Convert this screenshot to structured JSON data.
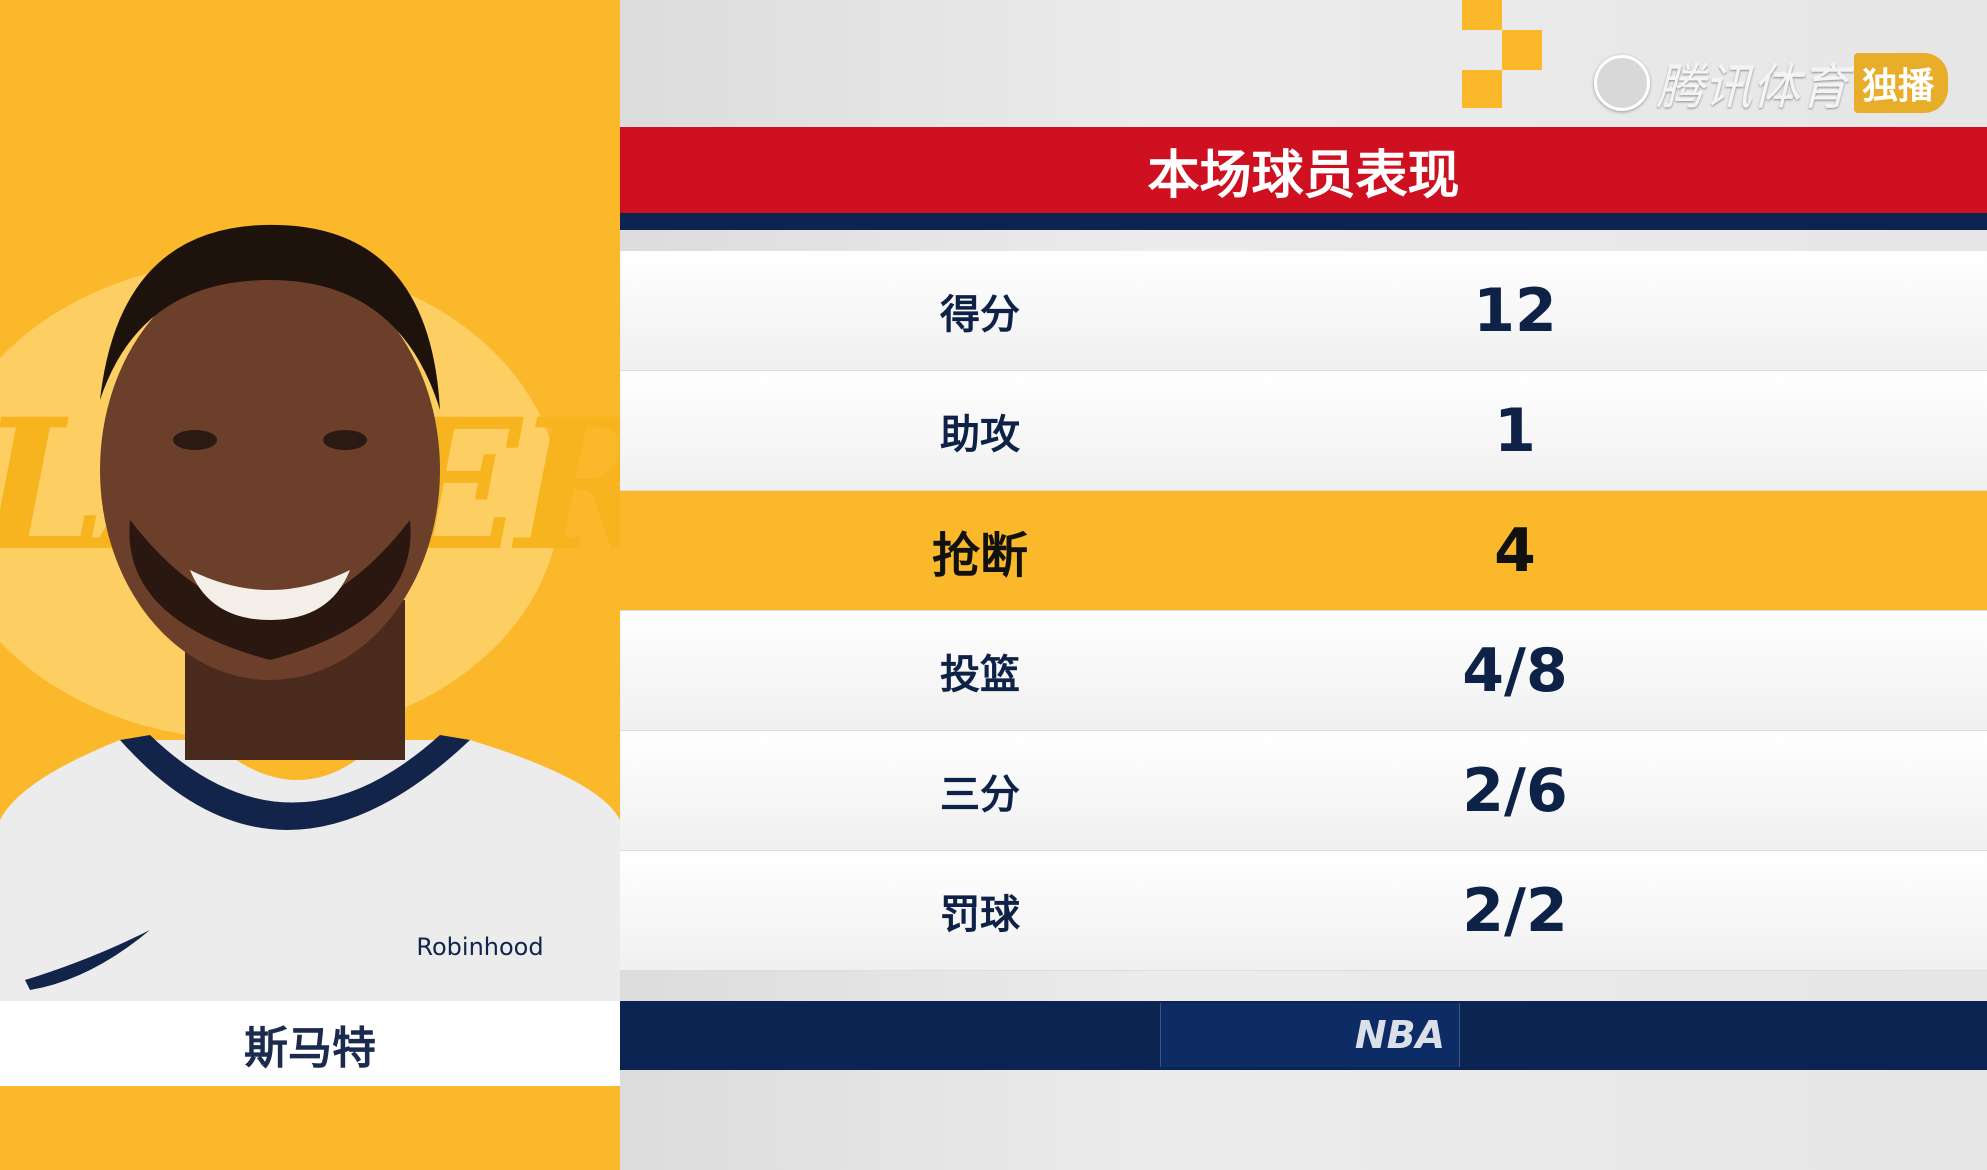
{
  "brand": {
    "name": "腾讯体育",
    "badge": "独播",
    "icon": "soccer-ball-icon"
  },
  "header": {
    "title": "本场球员表现"
  },
  "player": {
    "name": "斯马特",
    "sponsor": "Robinhood",
    "team_logo_text": "LAKERS"
  },
  "stats": [
    {
      "label": "得分",
      "value": "12",
      "highlight": false
    },
    {
      "label": "助攻",
      "value": "1",
      "highlight": false
    },
    {
      "label": "抢断",
      "value": "4",
      "highlight": true
    },
    {
      "label": "投篮",
      "value": "4/8",
      "highlight": false
    },
    {
      "label": "三分",
      "value": "2/6",
      "highlight": false
    },
    {
      "label": "罚球",
      "value": "2/2",
      "highlight": false
    }
  ],
  "footer": {
    "logo": "NBA"
  },
  "colors": {
    "yellow": "#fbb82a",
    "red": "#cf1020",
    "navy": "#0b2452"
  }
}
